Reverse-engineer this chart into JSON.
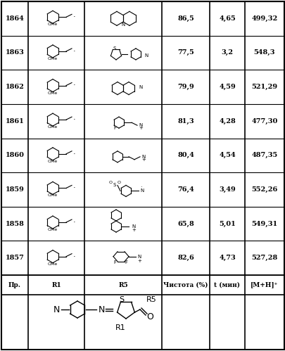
{
  "title_formula": "R1\nN\nS\nR5\nO",
  "header": [
    "Пр.",
    "R1",
    "R5",
    "Чистота (%)",
    "t (мин)",
    "[M+H]⁺"
  ],
  "rows": [
    {
      "id": "1857",
      "purity": "82,6",
      "t": "4,73",
      "mh": "527,28"
    },
    {
      "id": "1858",
      "purity": "65,8",
      "t": "5,01",
      "mh": "549,31"
    },
    {
      "id": "1859",
      "purity": "76,4",
      "t": "3,49",
      "mh": "552,26"
    },
    {
      "id": "1860",
      "purity": "80,4",
      "t": "4,54",
      "mh": "487,35"
    },
    {
      "id": "1861",
      "purity": "81,3",
      "t": "4,28",
      "mh": "477,30"
    },
    {
      "id": "1862",
      "purity": "79,9",
      "t": "4,59",
      "mh": "521,29"
    },
    {
      "id": "1863",
      "purity": "77,5",
      "t": "3,2",
      "mh": "548,3"
    },
    {
      "id": "1864",
      "purity": "86,5",
      "t": "4,65",
      "mh": "499,32"
    }
  ],
  "bg_color": "#f5f5f0",
  "border_color": "#000000",
  "text_color": "#000000",
  "figsize": [
    4.06,
    4.99
  ],
  "dpi": 100
}
